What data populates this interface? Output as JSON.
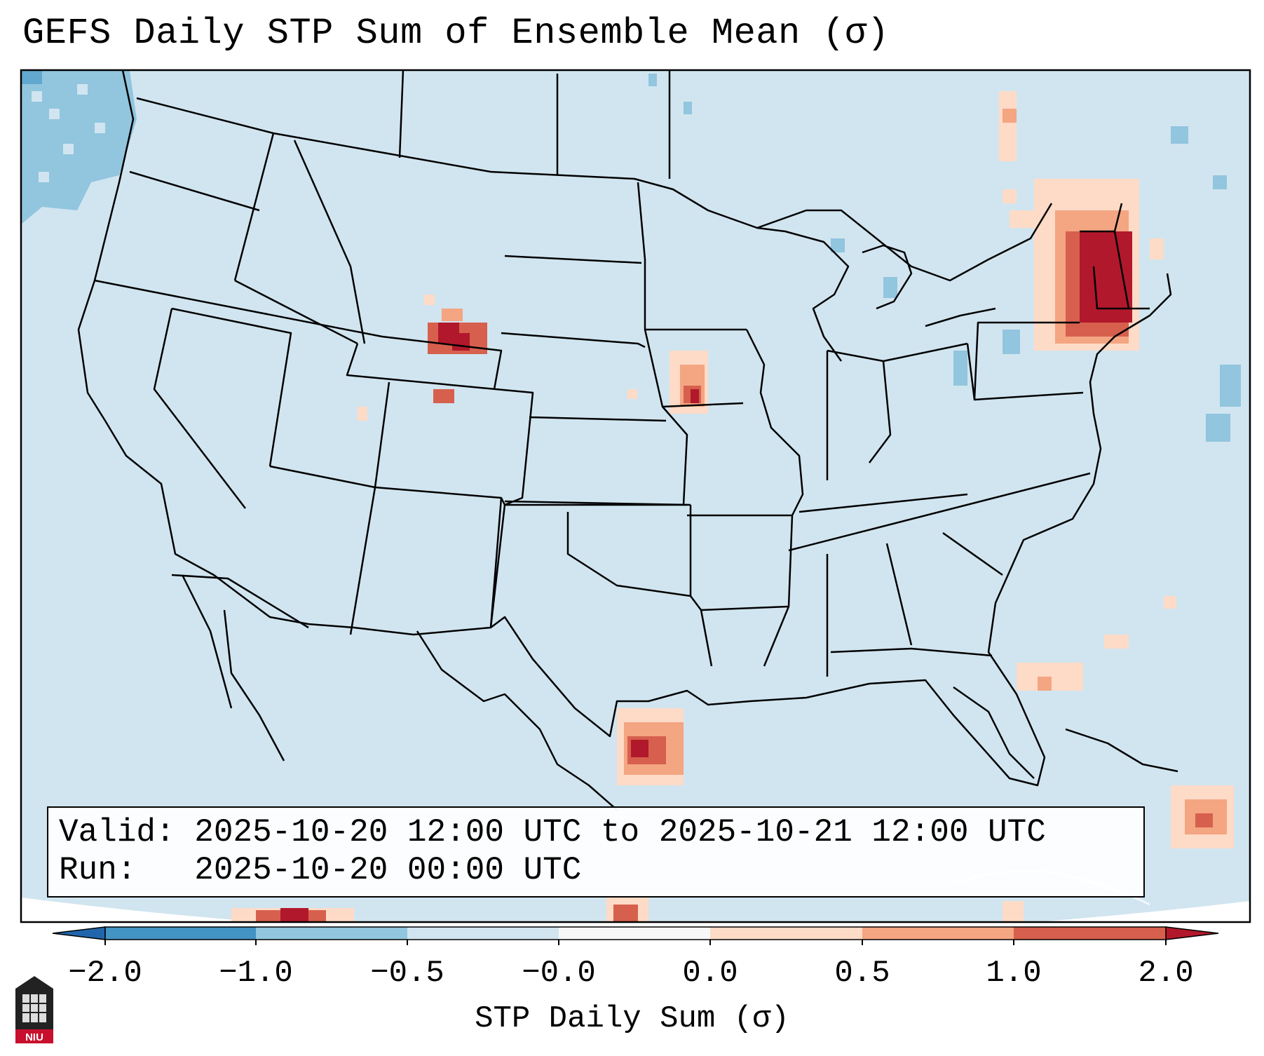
{
  "title": "GEFS Daily STP Sum of Ensemble Mean (σ)",
  "info": {
    "valid_label": "Valid:",
    "valid_value": "2025-10-20 12:00 UTC to 2025-10-21 12:00 UTC",
    "run_label": "Run:",
    "run_value": "2025-10-20 00:00 UTC"
  },
  "colorbar": {
    "label": "STP Daily Sum (σ)",
    "ticks": [
      "−2.0",
      "−1.0",
      "−0.5",
      "−0.0",
      "0.0",
      "0.5",
      "1.0",
      "2.0"
    ],
    "bins": [
      "#4393c3",
      "#92c5de",
      "#d1e5f0",
      "#f7f7f7",
      "#fddbc7",
      "#f4a582",
      "#d6604d"
    ],
    "extend_low_color": "#2166ac",
    "extend_high_color": "#b2182b"
  },
  "map": {
    "background_color": "#d1e5f0",
    "ocean_offdomain_color": "#ffffff",
    "border_color": "#000000"
  },
  "logo": {
    "text": "NIU"
  }
}
